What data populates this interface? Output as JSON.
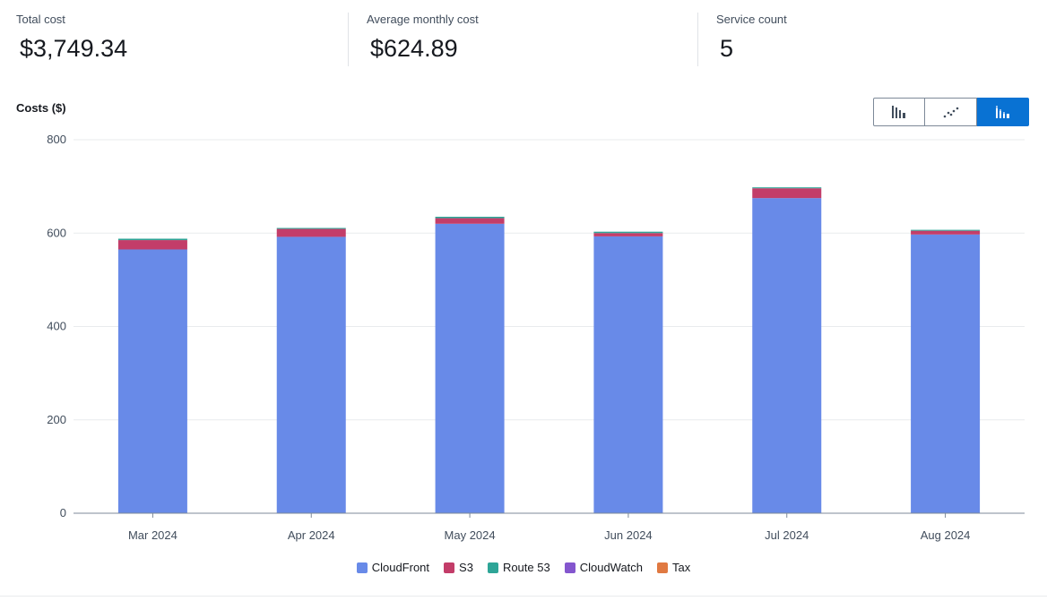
{
  "summary": {
    "total_cost": {
      "label": "Total cost",
      "value": "$3,749.34"
    },
    "avg_monthly_cost": {
      "label": "Average monthly cost",
      "value": "$624.89"
    },
    "service_count": {
      "label": "Service count",
      "value": "5"
    }
  },
  "chart_title": "Costs ($)",
  "chart_type_buttons": [
    {
      "id": "bar",
      "icon": "bar-chart-icon",
      "active": false
    },
    {
      "id": "line",
      "icon": "line-chart-icon",
      "active": false
    },
    {
      "id": "stacked",
      "icon": "stacked-bar-chart-icon",
      "active": true
    }
  ],
  "colors": {
    "CloudFront": "#688ae8",
    "S3": "#c33d69",
    "Route 53": "#2ea597",
    "CloudWatch": "#8456ce",
    "Tax": "#e07941"
  },
  "chart_data": {
    "type": "bar",
    "stacked": true,
    "title": "Costs ($)",
    "xlabel": "",
    "ylabel": "",
    "categories": [
      "Mar 2024",
      "Apr 2024",
      "May 2024",
      "Jun 2024",
      "Jul 2024",
      "Aug 2024"
    ],
    "series": [
      {
        "name": "CloudFront",
        "values": [
          565,
          592,
          620,
          593,
          675,
          597
        ]
      },
      {
        "name": "S3",
        "values": [
          20,
          17,
          12,
          7,
          21,
          8
        ]
      },
      {
        "name": "Route 53",
        "values": [
          3,
          2,
          3,
          3,
          2,
          2
        ]
      },
      {
        "name": "CloudWatch",
        "values": [
          0,
          0,
          0,
          0,
          0,
          0
        ]
      },
      {
        "name": "Tax",
        "values": [
          0,
          0,
          0,
          0,
          0,
          0
        ]
      }
    ],
    "ylim": [
      0,
      800
    ],
    "yticks": [
      "0",
      "200",
      "400",
      "600",
      "800"
    ],
    "grid": true,
    "legend_position": "bottom-center"
  }
}
